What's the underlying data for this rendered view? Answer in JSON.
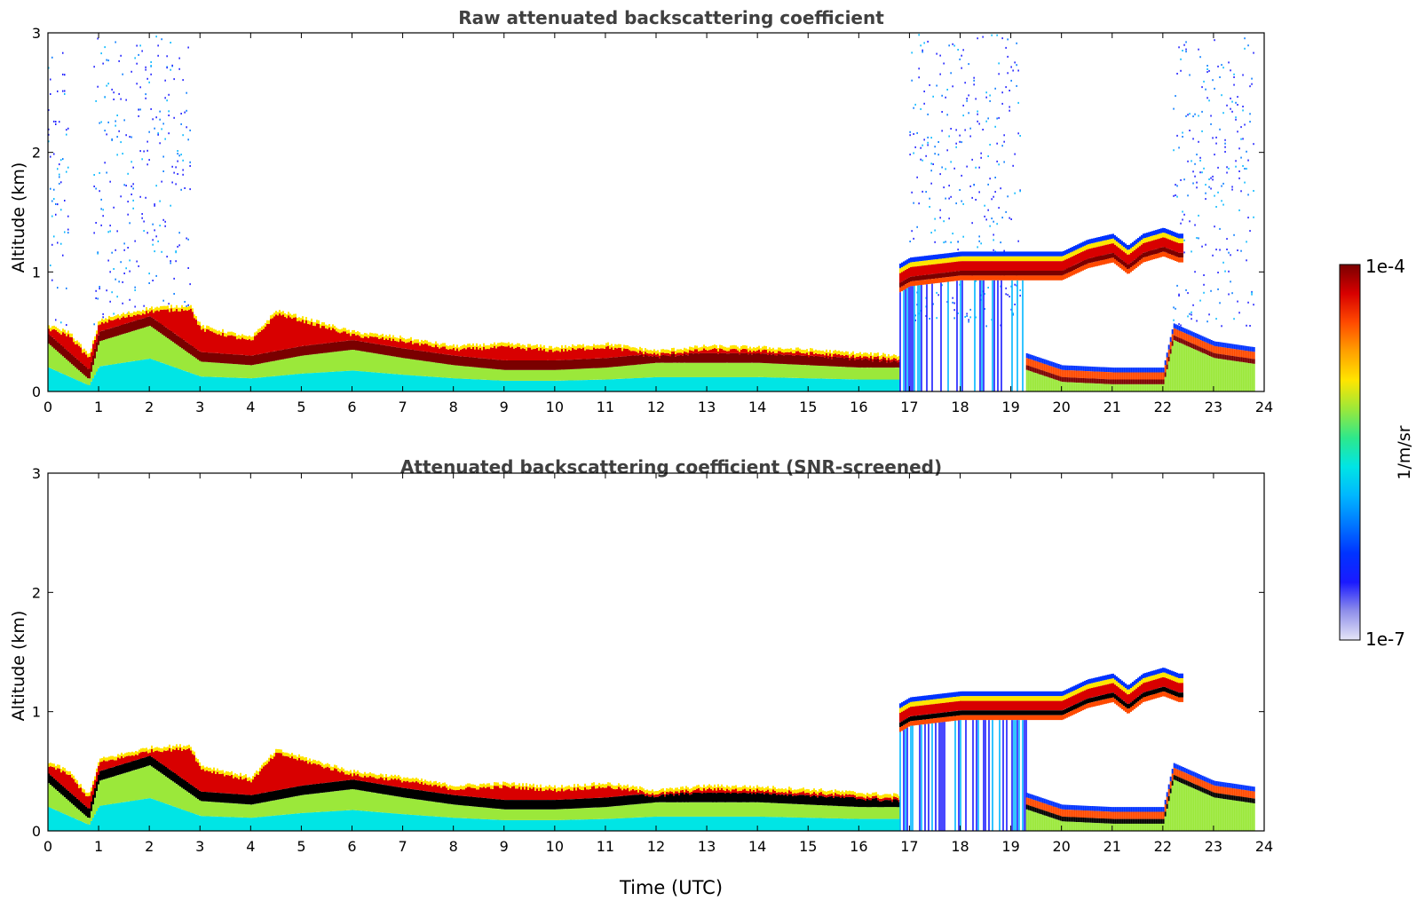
{
  "colors": {
    "title": "#404040",
    "axis": "#000000",
    "cmap": [
      "#e6e6f7",
      "#8f8fea",
      "#1a1aff",
      "#0033ff",
      "#0077ff",
      "#00b7ff",
      "#00e5e5",
      "#2de88c",
      "#9be83a",
      "#ffe500",
      "#ffa000",
      "#ff4a00",
      "#d80000",
      "#7a0000"
    ],
    "screened_peak": "#000000"
  },
  "colorbar": {
    "top_label": "1e-4",
    "bottom_label": "1e-7",
    "unit_label": "1/m/sr"
  },
  "x_axis_label": "Time (UTC)",
  "chart_data": [
    {
      "type": "heatmap",
      "title": "Raw attenuated backscattering coefficient",
      "xlabel": "",
      "ylabel": "Altitude (km)",
      "xlim": [
        0,
        24
      ],
      "ylim": [
        0,
        3
      ],
      "xticks": [
        0,
        1,
        2,
        3,
        4,
        5,
        6,
        7,
        8,
        9,
        10,
        11,
        12,
        13,
        14,
        15,
        16,
        17,
        18,
        19,
        20,
        21,
        22,
        23,
        24
      ],
      "yticks": [
        0,
        1,
        2,
        3
      ],
      "clim": [
        "1e-7",
        "1e-4"
      ],
      "colorbar_label": "1/m/sr",
      "boundary_layer_top_km": [
        [
          0,
          0.55
        ],
        [
          0.4,
          0.5
        ],
        [
          0.8,
          0.3
        ],
        [
          1,
          0.6
        ],
        [
          2,
          0.7
        ],
        [
          2.8,
          0.72
        ],
        [
          3,
          0.55
        ],
        [
          4,
          0.45
        ],
        [
          4.5,
          0.68
        ],
        [
          5,
          0.62
        ],
        [
          6,
          0.5
        ],
        [
          7,
          0.45
        ],
        [
          8,
          0.38
        ],
        [
          9,
          0.4
        ],
        [
          10,
          0.37
        ],
        [
          11,
          0.4
        ],
        [
          12,
          0.34
        ],
        [
          13,
          0.38
        ],
        [
          14,
          0.37
        ],
        [
          15,
          0.35
        ],
        [
          16,
          0.32
        ],
        [
          16.8,
          0.3
        ]
      ],
      "boundary_layer_peak_km": [
        [
          0,
          0.4
        ],
        [
          0.8,
          0.1
        ],
        [
          1,
          0.42
        ],
        [
          2,
          0.55
        ],
        [
          3,
          0.25
        ],
        [
          4,
          0.22
        ],
        [
          5,
          0.3
        ],
        [
          6,
          0.35
        ],
        [
          7,
          0.28
        ],
        [
          8,
          0.22
        ],
        [
          9,
          0.18
        ],
        [
          10,
          0.18
        ],
        [
          11,
          0.2
        ],
        [
          12,
          0.24
        ],
        [
          13,
          0.24
        ],
        [
          14,
          0.24
        ],
        [
          15,
          0.22
        ],
        [
          16,
          0.2
        ],
        [
          16.8,
          0.2
        ]
      ],
      "cloud_layer_km": [
        [
          16.8,
          0.95
        ],
        [
          17,
          1.0
        ],
        [
          18,
          1.05
        ],
        [
          19,
          1.05
        ],
        [
          19.5,
          1.05
        ],
        [
          20,
          1.05
        ],
        [
          20.5,
          1.15
        ],
        [
          21,
          1.2
        ],
        [
          21.3,
          1.1
        ],
        [
          21.6,
          1.2
        ],
        [
          22,
          1.25
        ],
        [
          22.3,
          1.2
        ]
      ],
      "lower_layer_late_km": [
        [
          19.3,
          0.25
        ],
        [
          20,
          0.15
        ],
        [
          21,
          0.13
        ],
        [
          22,
          0.13
        ],
        [
          22.2,
          0.5
        ],
        [
          23,
          0.35
        ],
        [
          23.8,
          0.3
        ]
      ],
      "noise_regions_hours": [
        [
          0,
          0.4
        ],
        [
          0.9,
          2.8
        ],
        [
          17,
          19.2
        ],
        [
          22.2,
          23.8
        ]
      ]
    },
    {
      "type": "heatmap",
      "title": "Attenuated backscattering coefficient (SNR-screened)",
      "xlabel": "Time (UTC)",
      "ylabel": "Altitude (km)",
      "xlim": [
        0,
        24
      ],
      "ylim": [
        0,
        3
      ],
      "xticks": [
        0,
        1,
        2,
        3,
        4,
        5,
        6,
        7,
        8,
        9,
        10,
        11,
        12,
        13,
        14,
        15,
        16,
        17,
        18,
        19,
        20,
        21,
        22,
        23,
        24
      ],
      "yticks": [
        0,
        1,
        2,
        3
      ],
      "clim": [
        "1e-7",
        "1e-4"
      ],
      "colorbar_label": "1/m/sr",
      "boundary_layer_top_km": [
        [
          0,
          0.58
        ],
        [
          0.4,
          0.5
        ],
        [
          0.8,
          0.3
        ],
        [
          1,
          0.6
        ],
        [
          2,
          0.7
        ],
        [
          2.8,
          0.72
        ],
        [
          3,
          0.55
        ],
        [
          4,
          0.45
        ],
        [
          4.5,
          0.68
        ],
        [
          5,
          0.62
        ],
        [
          6,
          0.5
        ],
        [
          7,
          0.45
        ],
        [
          8,
          0.38
        ],
        [
          9,
          0.4
        ],
        [
          10,
          0.37
        ],
        [
          11,
          0.4
        ],
        [
          12,
          0.34
        ],
        [
          13,
          0.38
        ],
        [
          14,
          0.37
        ],
        [
          15,
          0.35
        ],
        [
          16,
          0.32
        ],
        [
          16.8,
          0.3
        ]
      ],
      "boundary_layer_peak_km": [
        [
          0,
          0.4
        ],
        [
          0.8,
          0.1
        ],
        [
          1,
          0.42
        ],
        [
          2,
          0.55
        ],
        [
          3,
          0.25
        ],
        [
          4,
          0.22
        ],
        [
          5,
          0.3
        ],
        [
          6,
          0.35
        ],
        [
          7,
          0.28
        ],
        [
          8,
          0.22
        ],
        [
          9,
          0.18
        ],
        [
          10,
          0.18
        ],
        [
          11,
          0.2
        ],
        [
          12,
          0.24
        ],
        [
          13,
          0.24
        ],
        [
          14,
          0.24
        ],
        [
          15,
          0.22
        ],
        [
          16,
          0.2
        ],
        [
          16.8,
          0.2
        ]
      ],
      "cloud_layer_km": [
        [
          16.8,
          0.95
        ],
        [
          17,
          1.0
        ],
        [
          18,
          1.05
        ],
        [
          19,
          1.05
        ],
        [
          19.5,
          1.05
        ],
        [
          20,
          1.05
        ],
        [
          20.5,
          1.15
        ],
        [
          21,
          1.2
        ],
        [
          21.3,
          1.1
        ],
        [
          21.6,
          1.2
        ],
        [
          22,
          1.25
        ],
        [
          22.3,
          1.2
        ]
      ],
      "lower_layer_late_km": [
        [
          19.3,
          0.25
        ],
        [
          20,
          0.15
        ],
        [
          21,
          0.13
        ],
        [
          22,
          0.13
        ],
        [
          22.2,
          0.5
        ],
        [
          23,
          0.35
        ],
        [
          23.8,
          0.3
        ]
      ],
      "noise_regions_hours": []
    }
  ]
}
